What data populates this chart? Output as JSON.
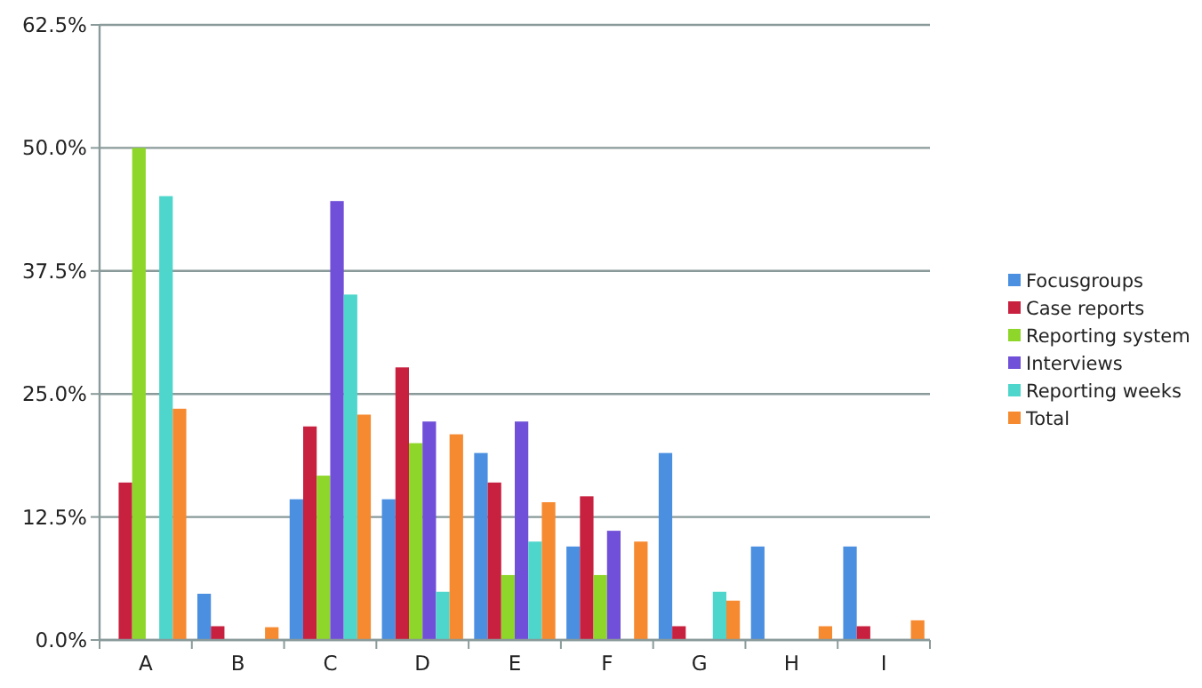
{
  "chart_data": {
    "type": "bar",
    "categories": [
      "A",
      "B",
      "C",
      "D",
      "E",
      "F",
      "G",
      "H",
      "I"
    ],
    "series": [
      {
        "name": "Focusgroups",
        "color": "#4a8fe0",
        "values": [
          0,
          4.7,
          14.3,
          14.3,
          19.0,
          9.5,
          19.0,
          9.5,
          9.5
        ]
      },
      {
        "name": "Case reports",
        "color": "#c8203f",
        "values": [
          16.0,
          1.4,
          21.7,
          27.7,
          16.0,
          14.6,
          1.4,
          0,
          1.4
        ]
      },
      {
        "name": "Reporting system",
        "color": "#8ed62a",
        "values": [
          50.0,
          0,
          16.7,
          20.0,
          6.6,
          6.6,
          0,
          0,
          0
        ]
      },
      {
        "name": "Interviews",
        "color": "#7050d8",
        "values": [
          0,
          0,
          44.6,
          22.2,
          22.2,
          11.1,
          0,
          0,
          0
        ]
      },
      {
        "name": "Reporting weeks",
        "color": "#4fd6cc",
        "values": [
          45.1,
          0,
          35.1,
          4.9,
          10.0,
          0,
          4.9,
          0,
          0
        ]
      },
      {
        "name": "Total",
        "color": "#f68a30",
        "values": [
          23.5,
          1.3,
          22.9,
          20.9,
          14.0,
          10.0,
          4.0,
          1.4,
          2.0
        ]
      }
    ],
    "ylim": [
      0,
      62.5
    ],
    "yticks": [
      {
        "value": 0,
        "label": "0.0%"
      },
      {
        "value": 12.5,
        "label": "12.5%"
      },
      {
        "value": 25,
        "label": "25.0%"
      },
      {
        "value": 37.5,
        "label": "37.5%"
      },
      {
        "value": 50,
        "label": "50.0%"
      },
      {
        "value": 62.5,
        "label": "62.5%"
      }
    ],
    "grid": "y",
    "legend": "right"
  }
}
